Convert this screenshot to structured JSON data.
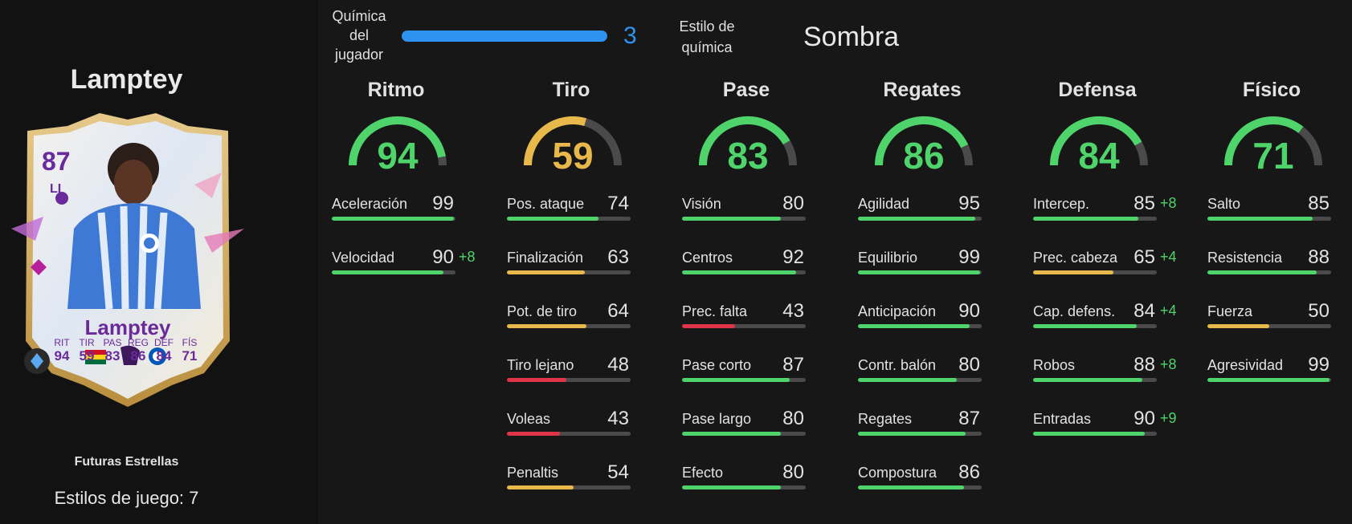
{
  "player": {
    "name": "Lamptey",
    "card_type": "Futuras Estrellas",
    "playstyles": "Estilos de juego: 7",
    "card": {
      "ovr": "87",
      "pos": "LI",
      "name": "Lamptey",
      "stats": [
        {
          "label": "RIT",
          "value": "94"
        },
        {
          "label": "TIR",
          "value": "59"
        },
        {
          "label": "PAS",
          "value": "83"
        },
        {
          "label": "REG",
          "value": "86"
        },
        {
          "label": "DEF",
          "value": "84"
        },
        {
          "label": "FÍS",
          "value": "71"
        }
      ],
      "text_color": "#6a2a9b"
    }
  },
  "chemistry": {
    "label": "Química del jugador",
    "value": "3",
    "max": 3,
    "style_label": "Estilo de química",
    "style_value": "Sombra",
    "color": "#2e93f0"
  },
  "colors": {
    "high": "#4ed46a",
    "mid": "#e8b84a",
    "low": "#e0344a",
    "track": "#4a4a4a"
  },
  "columns": [
    {
      "title": "Ritmo",
      "value": "94",
      "attrs": [
        {
          "name": "Aceleración",
          "value": "99",
          "bonus": ""
        },
        {
          "name": "Velocidad",
          "value": "90",
          "bonus": "+8"
        }
      ]
    },
    {
      "title": "Tiro",
      "value": "59",
      "attrs": [
        {
          "name": "Pos. ataque",
          "value": "74",
          "bonus": ""
        },
        {
          "name": "Finalización",
          "value": "63",
          "bonus": ""
        },
        {
          "name": "Pot. de tiro",
          "value": "64",
          "bonus": ""
        },
        {
          "name": "Tiro lejano",
          "value": "48",
          "bonus": ""
        },
        {
          "name": "Voleas",
          "value": "43",
          "bonus": ""
        },
        {
          "name": "Penaltis",
          "value": "54",
          "bonus": ""
        }
      ]
    },
    {
      "title": "Pase",
      "value": "83",
      "attrs": [
        {
          "name": "Visión",
          "value": "80",
          "bonus": ""
        },
        {
          "name": "Centros",
          "value": "92",
          "bonus": ""
        },
        {
          "name": "Prec. falta",
          "value": "43",
          "bonus": ""
        },
        {
          "name": "Pase corto",
          "value": "87",
          "bonus": ""
        },
        {
          "name": "Pase largo",
          "value": "80",
          "bonus": ""
        },
        {
          "name": "Efecto",
          "value": "80",
          "bonus": ""
        }
      ]
    },
    {
      "title": "Regates",
      "value": "86",
      "attrs": [
        {
          "name": "Agilidad",
          "value": "95",
          "bonus": ""
        },
        {
          "name": "Equilibrio",
          "value": "99",
          "bonus": ""
        },
        {
          "name": "Anticipación",
          "value": "90",
          "bonus": ""
        },
        {
          "name": "Contr. balón",
          "value": "80",
          "bonus": ""
        },
        {
          "name": "Regates",
          "value": "87",
          "bonus": ""
        },
        {
          "name": "Compostura",
          "value": "86",
          "bonus": ""
        }
      ]
    },
    {
      "title": "Defensa",
      "value": "84",
      "attrs": [
        {
          "name": "Intercep.",
          "value": "85",
          "bonus": "+8"
        },
        {
          "name": "Prec. cabeza",
          "value": "65",
          "bonus": "+4"
        },
        {
          "name": "Cap. defens.",
          "value": "84",
          "bonus": "+4"
        },
        {
          "name": "Robos",
          "value": "88",
          "bonus": "+8"
        },
        {
          "name": "Entradas",
          "value": "90",
          "bonus": "+9"
        }
      ]
    },
    {
      "title": "Físico",
      "value": "71",
      "attrs": [
        {
          "name": "Salto",
          "value": "85",
          "bonus": ""
        },
        {
          "name": "Resistencia",
          "value": "88",
          "bonus": ""
        },
        {
          "name": "Fuerza",
          "value": "50",
          "bonus": ""
        },
        {
          "name": "Agresividad",
          "value": "99",
          "bonus": ""
        }
      ]
    }
  ]
}
